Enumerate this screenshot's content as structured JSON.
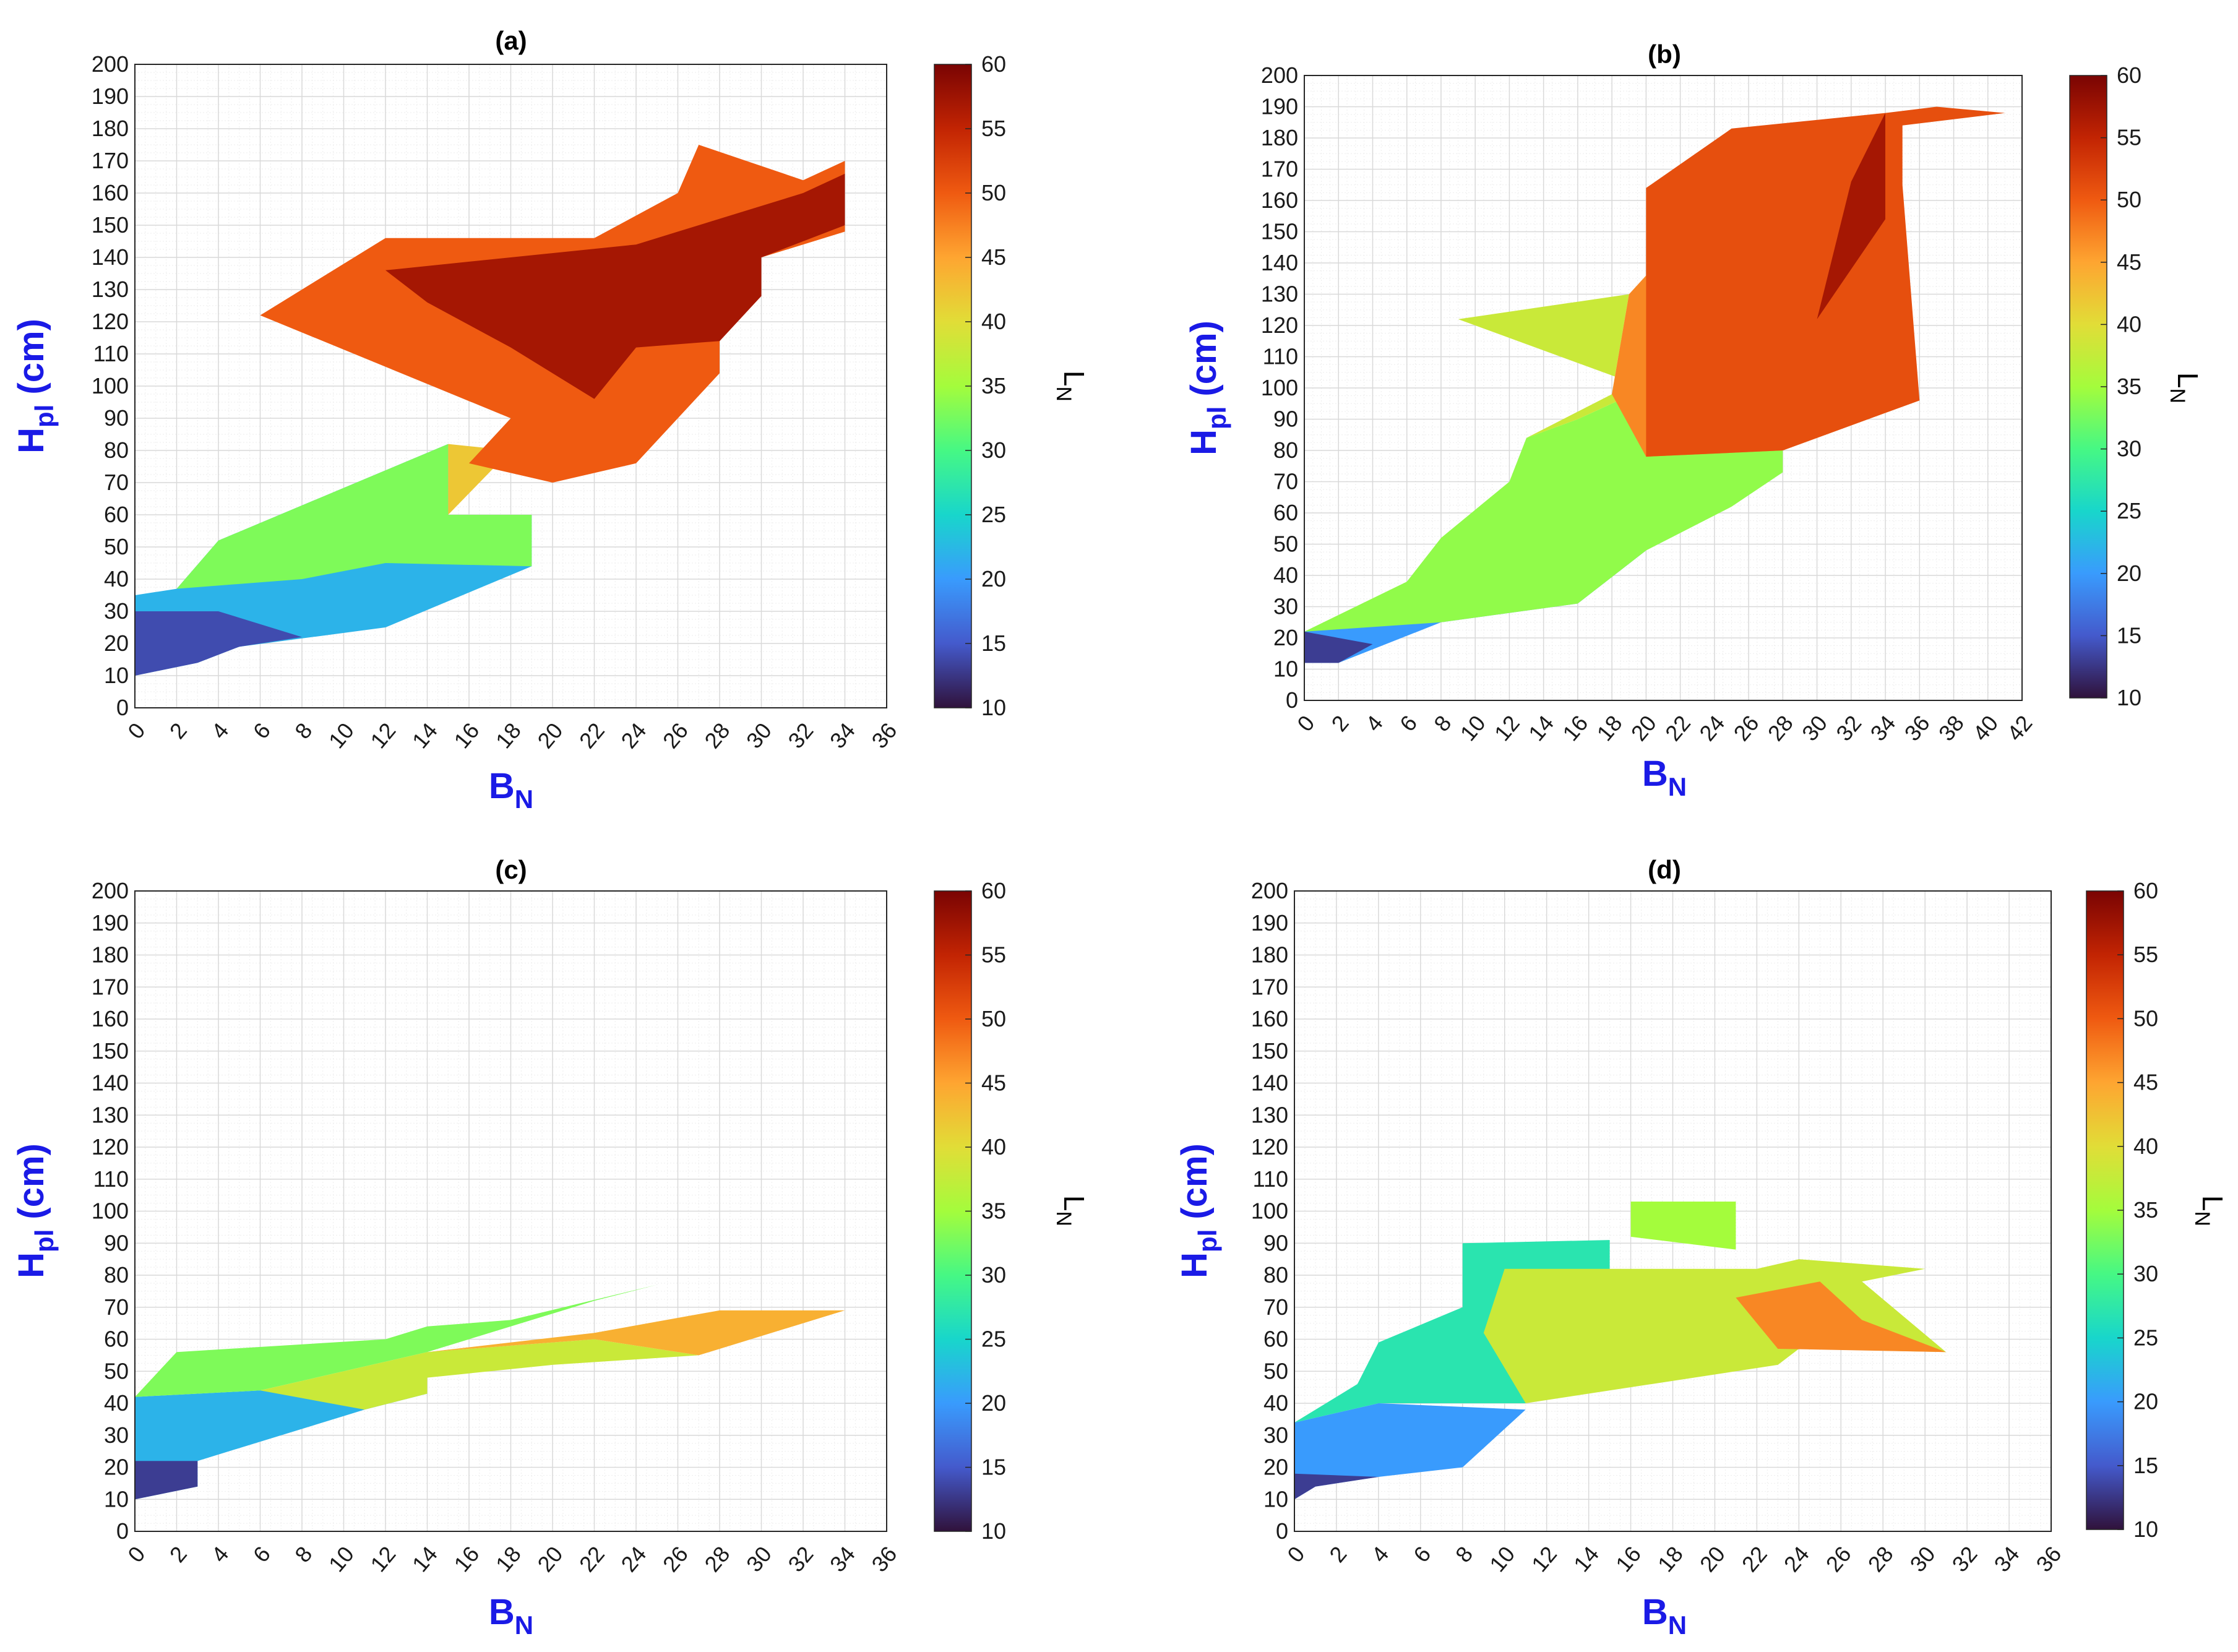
{
  "colors": {
    "axis_label": "#1a1ae6",
    "grid": "#d9d9d9",
    "minor_grid": "#eeeeee"
  },
  "colormap": "turbo",
  "chart_data": [
    {
      "type": "heatmap",
      "title": "(a)",
      "xlabel": "B",
      "xlabel_sub": "N",
      "ylabel": "H",
      "ylabel_sub": "pl",
      "ylabel_unit": " (cm)",
      "xlim": [
        0,
        36
      ],
      "ylim": [
        0,
        200
      ],
      "xticks": [
        "0",
        "2",
        "4",
        "6",
        "8",
        "10",
        "12",
        "14",
        "16",
        "18",
        "20",
        "22",
        "24",
        "26",
        "28",
        "30",
        "32",
        "34",
        "36"
      ],
      "yticks": [
        "0",
        "10",
        "20",
        "30",
        "40",
        "50",
        "60",
        "70",
        "80",
        "90",
        "100",
        "110",
        "120",
        "130",
        "140",
        "150",
        "160",
        "170",
        "180",
        "190",
        "200"
      ],
      "colorbar": {
        "label": "L",
        "label_sub": "N",
        "range": [
          10,
          60
        ],
        "ticks": [
          "10",
          "15",
          "20",
          "25",
          "30",
          "35",
          "40",
          "45",
          "50",
          "55",
          "60"
        ]
      },
      "regions": [
        {
          "value": 22,
          "points": [
            [
              0,
              10
            ],
            [
              3,
              14
            ],
            [
              5,
              19
            ],
            [
              12,
              25
            ],
            [
              19,
              44
            ],
            [
              19,
              60
            ],
            [
              15,
              60
            ],
            [
              15,
              82
            ],
            [
              4,
              52
            ],
            [
              2,
              37
            ],
            [
              0,
              35
            ]
          ]
        },
        {
          "value": 14,
          "points": [
            [
              0,
              10
            ],
            [
              3,
              14
            ],
            [
              5,
              19
            ],
            [
              8,
              22
            ],
            [
              4,
              30
            ],
            [
              0,
              30
            ]
          ]
        },
        {
          "value": 33,
          "points": [
            [
              2,
              37
            ],
            [
              4,
              52
            ],
            [
              15,
              82
            ],
            [
              15,
              60
            ],
            [
              19,
              60
            ],
            [
              19,
              44
            ],
            [
              12,
              45
            ],
            [
              8,
              40
            ]
          ]
        },
        {
          "value": 42,
          "points": [
            [
              15,
              60
            ],
            [
              15,
              82
            ],
            [
              18,
              80
            ],
            [
              20,
              70
            ],
            [
              22,
              76
            ],
            [
              24,
              76
            ],
            [
              22,
              96
            ],
            [
              18,
              80
            ]
          ]
        },
        {
          "value": 50,
          "points": [
            [
              6,
              122
            ],
            [
              12,
              146
            ],
            [
              22,
              146
            ],
            [
              26,
              160
            ],
            [
              27,
              175
            ],
            [
              32,
              164
            ],
            [
              34,
              170
            ],
            [
              34,
              148
            ],
            [
              30,
              140
            ],
            [
              30,
              128
            ],
            [
              28,
              114
            ],
            [
              28,
              104
            ],
            [
              24,
              76
            ],
            [
              20,
              70
            ],
            [
              16,
              76
            ],
            [
              18,
              90
            ]
          ]
        },
        {
          "value": 57,
          "points": [
            [
              12,
              136
            ],
            [
              24,
              144
            ],
            [
              26,
              148
            ],
            [
              32,
              160
            ],
            [
              34,
              166
            ],
            [
              34,
              150
            ],
            [
              30,
              140
            ],
            [
              30,
              128
            ],
            [
              28,
              114
            ],
            [
              24,
              112
            ],
            [
              22,
              96
            ],
            [
              18,
              112
            ],
            [
              14,
              126
            ]
          ]
        }
      ]
    },
    {
      "type": "heatmap",
      "title": "(b)",
      "xlabel": "B",
      "xlabel_sub": "N",
      "ylabel": "H",
      "ylabel_sub": "pl",
      "ylabel_unit": " (cm)",
      "xlim": [
        0,
        42
      ],
      "ylim": [
        0,
        200
      ],
      "xticks": [
        "0",
        "2",
        "4",
        "6",
        "8",
        "10",
        "12",
        "14",
        "16",
        "18",
        "20",
        "22",
        "24",
        "26",
        "28",
        "30",
        "32",
        "34",
        "36",
        "38",
        "40",
        "42"
      ],
      "yticks": [
        "0",
        "10",
        "20",
        "30",
        "40",
        "50",
        "60",
        "70",
        "80",
        "90",
        "100",
        "110",
        "120",
        "130",
        "140",
        "150",
        "160",
        "170",
        "180",
        "190",
        "200"
      ],
      "colorbar": {
        "label": "L",
        "label_sub": "N",
        "range": [
          10,
          60
        ],
        "ticks": [
          "10",
          "15",
          "20",
          "25",
          "30",
          "35",
          "40",
          "45",
          "50",
          "55",
          "60"
        ]
      },
      "regions": [
        {
          "value": 20,
          "points": [
            [
              0,
              12
            ],
            [
              2,
              12
            ],
            [
              8,
              25
            ],
            [
              16,
              31
            ],
            [
              20,
              48
            ],
            [
              10,
              45
            ],
            [
              4,
              30
            ],
            [
              0,
              22
            ]
          ]
        },
        {
          "value": 13,
          "points": [
            [
              0,
              12
            ],
            [
              2,
              12
            ],
            [
              4,
              18
            ],
            [
              0,
              22
            ]
          ]
        },
        {
          "value": 34,
          "points": [
            [
              0,
              22
            ],
            [
              6,
              38
            ],
            [
              8,
              52
            ],
            [
              12,
              70
            ],
            [
              13,
              84
            ],
            [
              16,
              90
            ],
            [
              20,
              100
            ],
            [
              28,
              80
            ],
            [
              28,
              73
            ],
            [
              25,
              62
            ],
            [
              20,
              48
            ],
            [
              16,
              31
            ],
            [
              8,
              25
            ]
          ]
        },
        {
          "value": 38,
          "points": [
            [
              9,
              122
            ],
            [
              19,
              130
            ],
            [
              18,
              98
            ],
            [
              13,
              84
            ],
            [
              16,
              90
            ],
            [
              20,
              100
            ]
          ]
        },
        {
          "value": 47,
          "points": [
            [
              18,
              98
            ],
            [
              19,
              130
            ],
            [
              20,
              136
            ],
            [
              20,
              164
            ],
            [
              24,
              172
            ],
            [
              36,
              96
            ],
            [
              28,
              80
            ],
            [
              20,
              78
            ]
          ]
        },
        {
          "value": 51,
          "points": [
            [
              20,
              164
            ],
            [
              25,
              183
            ],
            [
              34,
              188
            ],
            [
              37,
              190
            ],
            [
              41,
              188
            ],
            [
              35,
              184
            ],
            [
              35,
              165
            ],
            [
              36,
              96
            ],
            [
              28,
              80
            ],
            [
              20,
              78
            ],
            [
              20,
              136
            ]
          ]
        },
        {
          "value": 57,
          "points": [
            [
              30,
              122
            ],
            [
              34,
              154
            ],
            [
              34,
              188
            ],
            [
              32,
              166
            ]
          ]
        }
      ]
    },
    {
      "type": "heatmap",
      "title": "(c)",
      "xlabel": "B",
      "xlabel_sub": "N",
      "ylabel": "H",
      "ylabel_sub": "pl",
      "ylabel_unit": " (cm)",
      "xlim": [
        0,
        36
      ],
      "ylim": [
        0,
        200
      ],
      "xticks": [
        "0",
        "2",
        "4",
        "6",
        "8",
        "10",
        "12",
        "14",
        "16",
        "18",
        "20",
        "22",
        "24",
        "26",
        "28",
        "30",
        "32",
        "34",
        "36"
      ],
      "yticks": [
        "0",
        "10",
        "20",
        "30",
        "40",
        "50",
        "60",
        "70",
        "80",
        "90",
        "100",
        "110",
        "120",
        "130",
        "140",
        "150",
        "160",
        "170",
        "180",
        "190",
        "200"
      ],
      "colorbar": {
        "label": "L",
        "label_sub": "N",
        "range": [
          10,
          60
        ],
        "ticks": [
          "10",
          "15",
          "20",
          "25",
          "30",
          "35",
          "40",
          "45",
          "50",
          "55",
          "60"
        ]
      },
      "regions": [
        {
          "value": 22,
          "points": [
            [
              0,
              10
            ],
            [
              3,
              14
            ],
            [
              3,
              22
            ],
            [
              6,
              28
            ],
            [
              11,
              38
            ],
            [
              14,
              43
            ],
            [
              14,
              48
            ],
            [
              6,
              44
            ],
            [
              0,
              42
            ]
          ]
        },
        {
          "value": 13,
          "points": [
            [
              0,
              10
            ],
            [
              3,
              14
            ],
            [
              3,
              22
            ],
            [
              0,
              22
            ]
          ]
        },
        {
          "value": 33,
          "points": [
            [
              0,
              42
            ],
            [
              2,
              56
            ],
            [
              12,
              60
            ],
            [
              14,
              64
            ],
            [
              18,
              66
            ],
            [
              25,
              77
            ],
            [
              22,
              72
            ],
            [
              14,
              56
            ],
            [
              6,
              44
            ]
          ]
        },
        {
          "value": 38,
          "points": [
            [
              6,
              44
            ],
            [
              14,
              56
            ],
            [
              22,
              60
            ],
            [
              27,
              55
            ],
            [
              20,
              52
            ],
            [
              14,
              48
            ],
            [
              14,
              43
            ],
            [
              11,
              38
            ]
          ]
        },
        {
          "value": 44,
          "points": [
            [
              14,
              56
            ],
            [
              22,
              62
            ],
            [
              28,
              69
            ],
            [
              34,
              69
            ],
            [
              27,
              55
            ],
            [
              22,
              60
            ]
          ]
        }
      ]
    },
    {
      "type": "heatmap",
      "title": "(d)",
      "xlabel": "B",
      "xlabel_sub": "N",
      "ylabel": "H",
      "ylabel_sub": "pl",
      "ylabel_unit": " (cm)",
      "xlim": [
        0,
        36
      ],
      "ylim": [
        0,
        200
      ],
      "xticks": [
        "0",
        "2",
        "4",
        "6",
        "8",
        "10",
        "12",
        "14",
        "16",
        "18",
        "20",
        "22",
        "24",
        "26",
        "28",
        "30",
        "32",
        "34",
        "36"
      ],
      "yticks": [
        "0",
        "10",
        "20",
        "30",
        "40",
        "50",
        "60",
        "70",
        "80",
        "90",
        "100",
        "110",
        "120",
        "130",
        "140",
        "150",
        "160",
        "170",
        "180",
        "190",
        "200"
      ],
      "colorbar": {
        "label": "L",
        "label_sub": "N",
        "range": [
          10,
          60
        ],
        "ticks": [
          "10",
          "15",
          "20",
          "25",
          "30",
          "35",
          "40",
          "45",
          "50",
          "55",
          "60"
        ]
      },
      "regions": [
        {
          "value": 20,
          "points": [
            [
              0,
              10
            ],
            [
              1,
              14
            ],
            [
              4,
              17
            ],
            [
              8,
              20
            ],
            [
              11,
              38
            ],
            [
              4,
              40
            ],
            [
              0,
              34
            ]
          ]
        },
        {
          "value": 13,
          "points": [
            [
              0,
              10
            ],
            [
              1,
              14
            ],
            [
              4,
              17
            ],
            [
              0,
              18
            ]
          ]
        },
        {
          "value": 27,
          "points": [
            [
              0,
              34
            ],
            [
              3,
              46
            ],
            [
              4,
              59
            ],
            [
              8,
              70
            ],
            [
              8,
              90
            ],
            [
              15,
              91
            ],
            [
              15,
              82
            ],
            [
              11,
              40
            ],
            [
              4,
              40
            ]
          ]
        },
        {
          "value": 38,
          "points": [
            [
              9,
              62
            ],
            [
              10,
              82
            ],
            [
              22,
              82
            ],
            [
              24,
              85
            ],
            [
              30,
              82
            ],
            [
              27,
              78
            ],
            [
              31,
              56
            ],
            [
              24,
              57
            ],
            [
              23,
              52
            ],
            [
              11,
              40
            ]
          ]
        },
        {
          "value": 35,
          "points": [
            [
              16,
              92
            ],
            [
              16,
              103
            ],
            [
              21,
              103
            ],
            [
              21,
              88
            ],
            [
              16,
              92
            ]
          ]
        },
        {
          "value": 47,
          "points": [
            [
              21,
              73
            ],
            [
              23,
              57
            ],
            [
              31,
              56
            ],
            [
              27,
              66
            ],
            [
              25,
              78
            ]
          ]
        }
      ]
    }
  ]
}
